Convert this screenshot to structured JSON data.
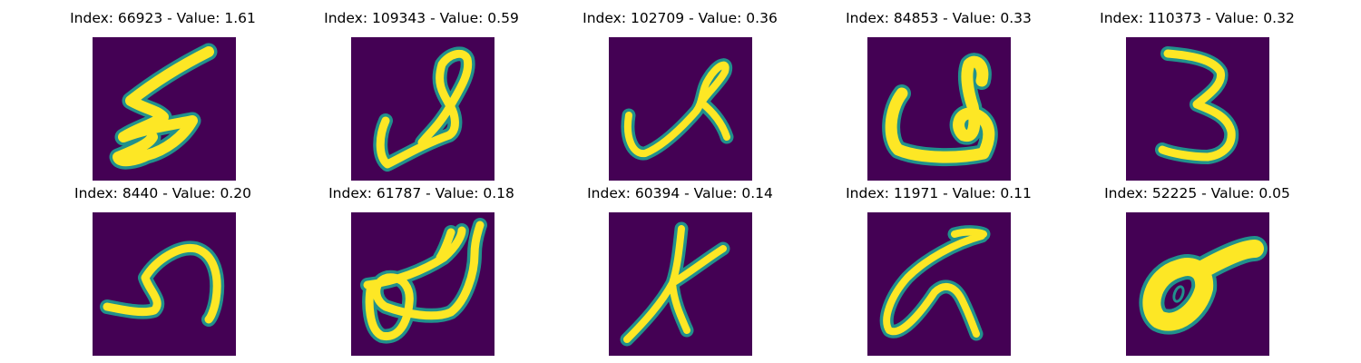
{
  "figure": {
    "background_color": "#440154",
    "stroke_color": "#fde725",
    "edge_color": "#21918c",
    "panels": [
      {
        "title": "Index: 66923 - Value: 1.61",
        "index": 66923,
        "value": 1.61
      },
      {
        "title": "Index: 109343 - Value: 0.59",
        "index": 109343,
        "value": 0.59
      },
      {
        "title": "Index: 102709 - Value: 0.36",
        "index": 102709,
        "value": 0.36
      },
      {
        "title": "Index: 84853 - Value: 0.33",
        "index": 84853,
        "value": 0.33
      },
      {
        "title": "Index: 110373 - Value: 0.32",
        "index": 110373,
        "value": 0.32
      },
      {
        "title": "Index: 8440 - Value: 0.20",
        "index": 8440,
        "value": 0.2
      },
      {
        "title": "Index: 61787 - Value: 0.18",
        "index": 61787,
        "value": 0.18
      },
      {
        "title": "Index: 60394 - Value: 0.14",
        "index": 60394,
        "value": 0.14
      },
      {
        "title": "Index: 11971 - Value: 0.11",
        "index": 11971,
        "value": 0.11
      },
      {
        "title": "Index: 52225 - Value: 0.05",
        "index": 52225,
        "value": 0.05
      }
    ]
  }
}
